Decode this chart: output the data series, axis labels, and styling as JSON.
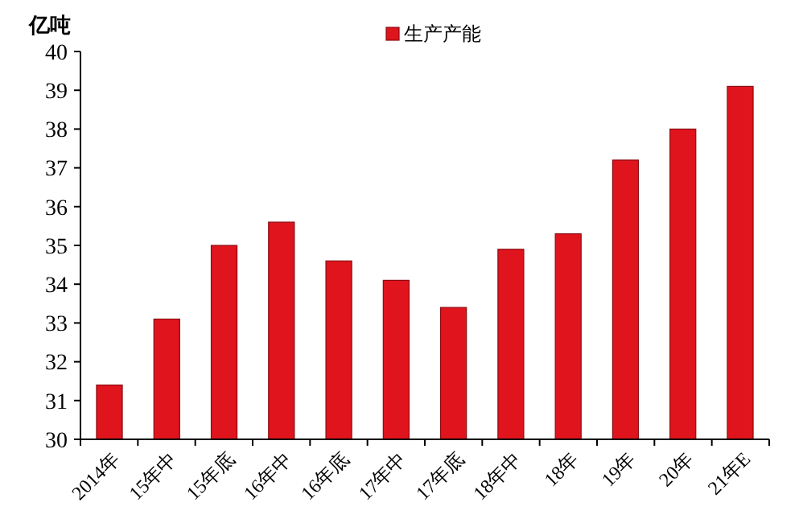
{
  "chart_data": {
    "type": "bar",
    "ylabel": "亿吨",
    "categories": [
      "2014年",
      "15年中",
      "15年底",
      "16年中",
      "16年底",
      "17年中",
      "17年底",
      "18年中",
      "18年",
      "19年",
      "20年",
      "21年E"
    ],
    "series": [
      {
        "name": "生产产能",
        "color": "#e0141c",
        "values": [
          31.4,
          33.1,
          35.0,
          35.6,
          34.6,
          34.1,
          33.4,
          34.9,
          35.3,
          37.2,
          38.0,
          39.1
        ]
      }
    ],
    "ylim": [
      30,
      40
    ],
    "yticks": [
      30,
      31,
      32,
      33,
      34,
      35,
      36,
      37,
      38,
      39,
      40
    ],
    "grid": false,
    "legend": "top"
  }
}
